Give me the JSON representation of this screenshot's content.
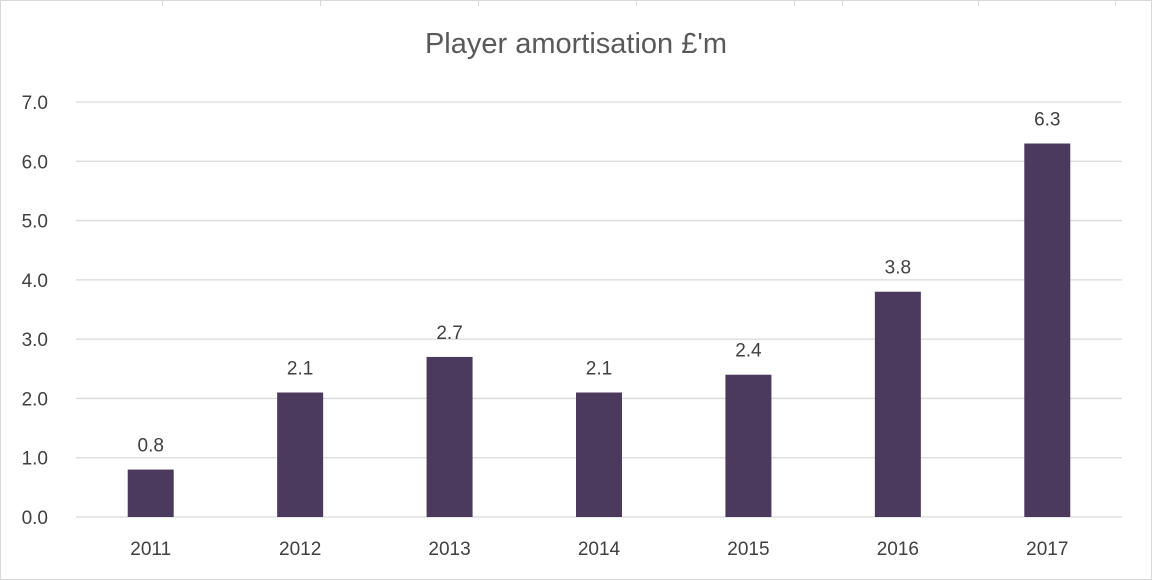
{
  "chart_data": {
    "type": "bar",
    "title": "Player amortisation £'m",
    "categories": [
      "2011",
      "2012",
      "2013",
      "2014",
      "2015",
      "2016",
      "2017"
    ],
    "values": [
      0.8,
      2.1,
      2.7,
      2.1,
      2.4,
      3.8,
      6.3
    ],
    "data_labels": [
      "0.8",
      "2.1",
      "2.7",
      "2.1",
      "2.4",
      "3.8",
      "6.3"
    ],
    "yticks": [
      "0.0",
      "1.0",
      "2.0",
      "3.0",
      "4.0",
      "5.0",
      "6.0",
      "7.0"
    ],
    "ylim": [
      0,
      7
    ],
    "grid": true,
    "legend": "none",
    "bar_color": "#4b3a5e",
    "grid_color": "#d9d9d9",
    "label_color": "#404040"
  }
}
